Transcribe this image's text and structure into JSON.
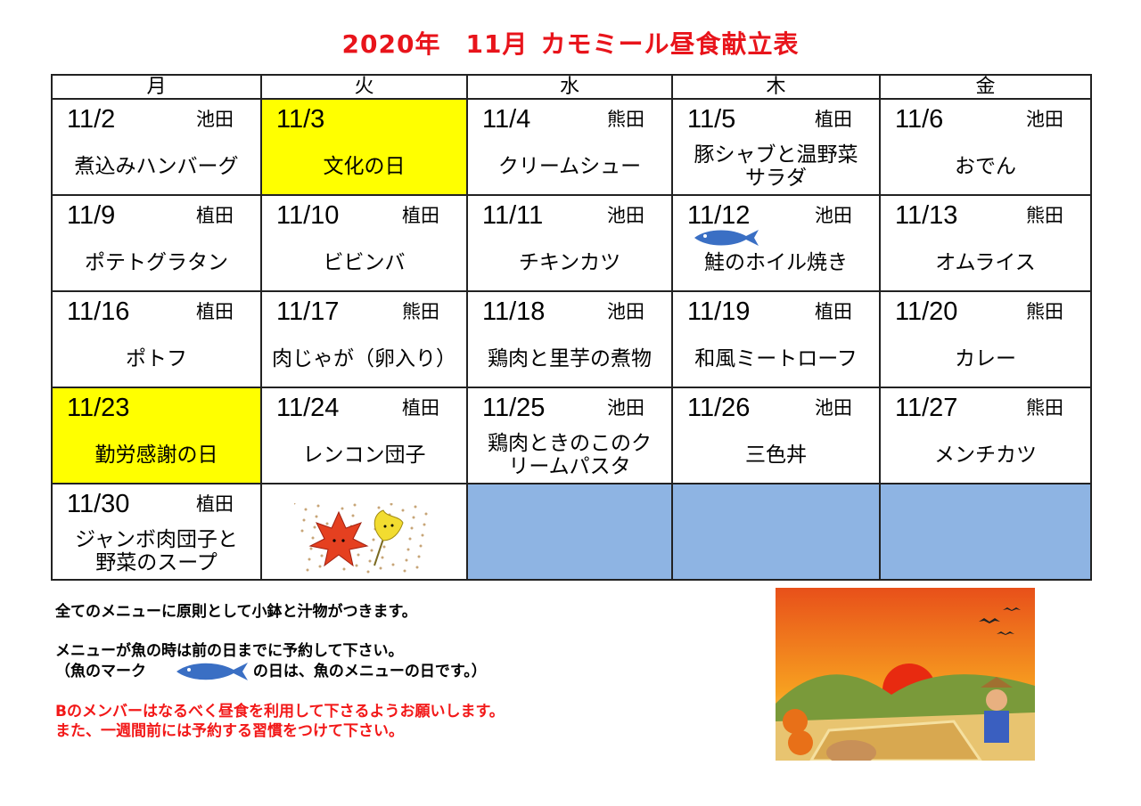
{
  "title": {
    "year": "2020年",
    "month": "11月",
    "name": "カモミール昼食献立表"
  },
  "weekdays": [
    "月",
    "火",
    "水",
    "木",
    "金"
  ],
  "weeks": [
    [
      {
        "date": "11/2",
        "cook": "池田",
        "menu": "煮込みハンバーグ"
      },
      {
        "date": "11/3",
        "cook": "",
        "menu": "文化の日",
        "holiday": true
      },
      {
        "date": "11/4",
        "cook": "熊田",
        "menu": "クリームシュー"
      },
      {
        "date": "11/5",
        "cook": "植田",
        "menu": "豚シャブと温野菜サラダ"
      },
      {
        "date": "11/6",
        "cook": "池田",
        "menu": "おでん"
      }
    ],
    [
      {
        "date": "11/9",
        "cook": "植田",
        "menu": "ポテトグラタン"
      },
      {
        "date": "11/10",
        "cook": "植田",
        "menu": "ビビンバ"
      },
      {
        "date": "11/11",
        "cook": "池田",
        "menu": "チキンカツ"
      },
      {
        "date": "11/12",
        "cook": "池田",
        "menu": "鮭のホイル焼き",
        "fish": true
      },
      {
        "date": "11/13",
        "cook": "熊田",
        "menu": "オムライス"
      }
    ],
    [
      {
        "date": "11/16",
        "cook": "植田",
        "menu": "ポトフ"
      },
      {
        "date": "11/17",
        "cook": "熊田",
        "menu": "肉じゃが（卵入り）"
      },
      {
        "date": "11/18",
        "cook": "池田",
        "menu": "鶏肉と里芋の煮物"
      },
      {
        "date": "11/19",
        "cook": "植田",
        "menu": "和風ミートローフ"
      },
      {
        "date": "11/20",
        "cook": "熊田",
        "menu": "カレー"
      }
    ],
    [
      {
        "date": "11/23",
        "cook": "",
        "menu": "勤労感謝の日",
        "holiday": true
      },
      {
        "date": "11/24",
        "cook": "植田",
        "menu": "レンコン団子"
      },
      {
        "date": "11/25",
        "cook": "池田",
        "menu": "鶏肉ときのこのクリームパスタ"
      },
      {
        "date": "11/26",
        "cook": "池田",
        "menu": "三色丼"
      },
      {
        "date": "11/27",
        "cook": "熊田",
        "menu": "メンチカツ"
      }
    ],
    [
      {
        "date": "11/30",
        "cook": "植田",
        "menu": "ジャンボ肉団子と野菜のスープ"
      },
      {
        "image": "autumn-leaves"
      },
      {
        "empty": true
      },
      {
        "empty": true
      },
      {
        "empty": true
      }
    ]
  ],
  "notes": {
    "line1": "全てのメニューに原則として小鉢と汁物がつきます。",
    "line2": "メニューが魚の時は前の日までに予約して下さい。",
    "line3a": "（魚のマーク",
    "line3b": "の日は、魚のメニューの日です。）",
    "red1": "Bのメンバーはなるべく昼食を利用して下さるようお願いします。",
    "red2": "また、一週間前には予約する習慣をつけて下さい。"
  },
  "colors": {
    "title": "#e8141b",
    "holiday": "#ffff00",
    "empty": "#8eb4e3",
    "fish": "#3a6fc4",
    "warning": "#f21818"
  }
}
